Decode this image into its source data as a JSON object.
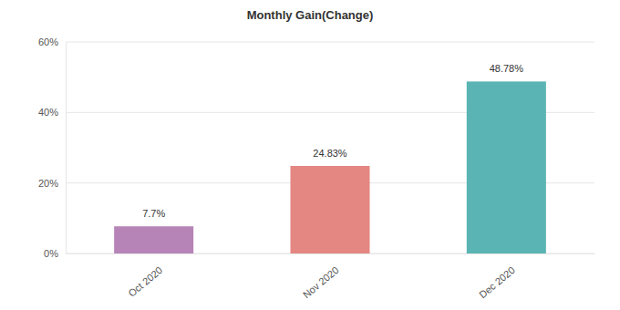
{
  "chart_data": {
    "type": "bar",
    "title": "Monthly Gain(Change)",
    "categories": [
      "Oct 2020",
      "Nov 2020",
      "Dec 2020"
    ],
    "values": [
      7.7,
      24.83,
      48.78
    ],
    "value_labels": [
      "7.7%",
      "24.83%",
      "48.78%"
    ],
    "colors": [
      "#b784b7",
      "#e48782",
      "#5ab4b4"
    ],
    "ylim": [
      0,
      60
    ],
    "yticks": [
      {
        "value": 0,
        "label": "0%"
      },
      {
        "value": 20,
        "label": "20%"
      },
      {
        "value": 40,
        "label": "40%"
      },
      {
        "value": 60,
        "label": "60%"
      }
    ],
    "grid": true,
    "data_labels": true
  }
}
